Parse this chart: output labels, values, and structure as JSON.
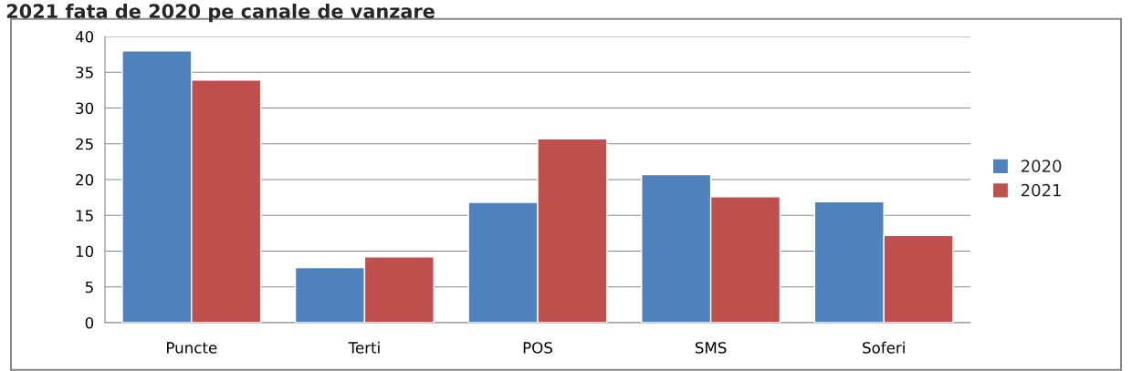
{
  "chart_data": {
    "type": "bar",
    "title": "2021 fata de 2020 pe canale de vanzare",
    "categories": [
      "Puncte",
      "Terti",
      "POS",
      "SMS",
      "Soferi"
    ],
    "series": [
      {
        "name": "2020",
        "color": "#4f81bd",
        "values": [
          38.0,
          7.7,
          16.8,
          20.7,
          16.9
        ]
      },
      {
        "name": "2021",
        "color": "#c0504d",
        "values": [
          33.9,
          9.2,
          25.7,
          17.6,
          12.2
        ]
      }
    ],
    "ylim": [
      0,
      40
    ],
    "yticks": [
      0,
      5,
      10,
      15,
      20,
      25,
      30,
      35,
      40
    ],
    "grid": "y",
    "legend": "right"
  }
}
